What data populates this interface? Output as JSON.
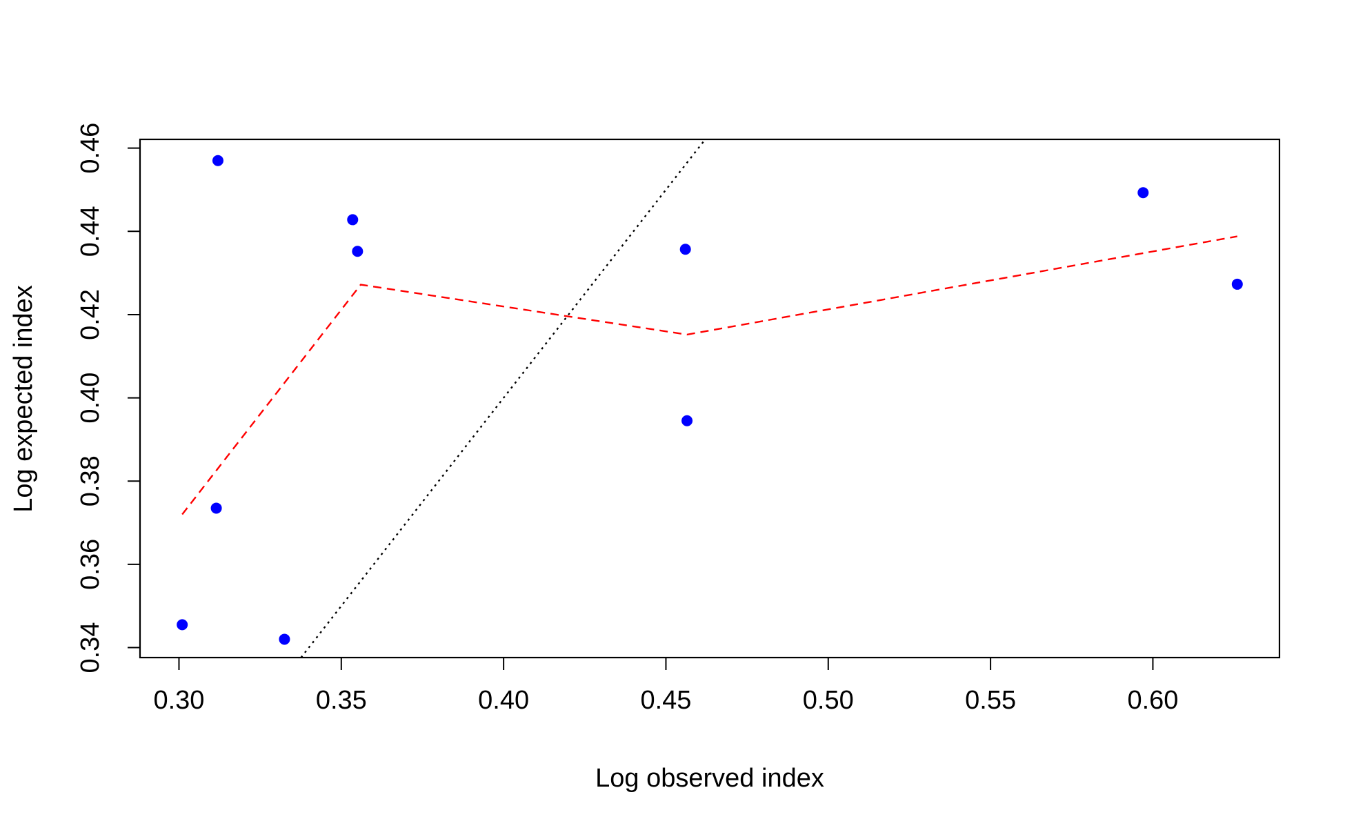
{
  "chart_data": {
    "type": "scatter",
    "title": "",
    "xlabel": "Log observed index",
    "ylabel": "Log expected index",
    "xlim": [
      0.288,
      0.639
    ],
    "ylim": [
      0.3376,
      0.4621
    ],
    "x_ticks": [
      0.3,
      0.35,
      0.4,
      0.45,
      0.5,
      0.55,
      0.6
    ],
    "x_tick_labels": [
      "0.30",
      "0.35",
      "0.40",
      "0.45",
      "0.50",
      "0.55",
      "0.60"
    ],
    "y_ticks": [
      0.34,
      0.36,
      0.38,
      0.4,
      0.42,
      0.44,
      0.46
    ],
    "y_tick_labels": [
      "0.34",
      "0.36",
      "0.38",
      "0.40",
      "0.42",
      "0.44",
      "0.46"
    ],
    "grid": false,
    "points": {
      "color": "#0000ff",
      "x": [
        0.301,
        0.312,
        0.3115,
        0.3325,
        0.3535,
        0.355,
        0.456,
        0.4565,
        0.597,
        0.626
      ],
      "y": [
        0.3455,
        0.457,
        0.3735,
        0.342,
        0.4428,
        0.4352,
        0.4357,
        0.3945,
        0.4493,
        0.4273
      ]
    },
    "smooth_line": {
      "color": "#ff0000",
      "style": "dashed",
      "x": [
        0.301,
        0.356,
        0.4565,
        0.626
      ],
      "y": [
        0.372,
        0.4272,
        0.4152,
        0.4388
      ]
    },
    "reference_line": {
      "color": "#000000",
      "style": "dotted",
      "x": [
        0.3376,
        0.4621
      ],
      "y": [
        0.3376,
        0.4621
      ]
    }
  }
}
